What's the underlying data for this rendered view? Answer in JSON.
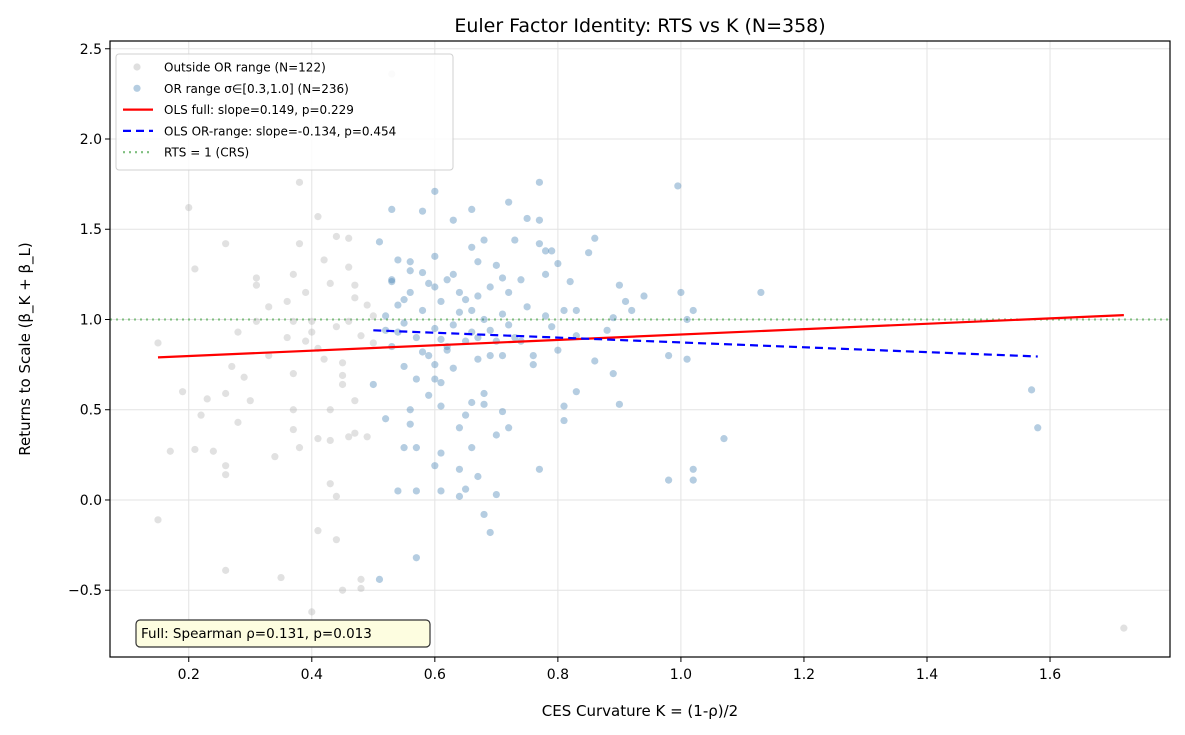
{
  "chart_data": {
    "type": "scatter",
    "title": "Euler Factor Identity: RTS vs K (N=358)",
    "xlabel": "CES Curvature K = (1-ρ)/2",
    "ylabel": "Returns to Scale (β_K + β_L)",
    "xlim": [
      0.072,
      1.795
    ],
    "ylim": [
      -0.87,
      2.543
    ],
    "xticks": [
      0.2,
      0.4,
      0.6,
      0.8,
      1.0,
      1.2,
      1.4,
      1.6
    ],
    "xtick_labels": [
      "0.2",
      "0.4",
      "0.6",
      "0.8",
      "1.0",
      "1.2",
      "1.4",
      "1.6"
    ],
    "yticks": [
      -0.5,
      0.0,
      0.5,
      1.0,
      1.5,
      2.0,
      2.5
    ],
    "ytick_labels": [
      "−0.5",
      "0.0",
      "0.5",
      "1.0",
      "1.5",
      "2.0",
      "2.5"
    ],
    "grid": true,
    "legend_position": "top-left",
    "series": [
      {
        "name": "Outside OR range (N=122)",
        "kind": "scatter",
        "color": "#b0b0b0",
        "points": [
          [
            0.15,
            -0.11
          ],
          [
            0.17,
            0.27
          ],
          [
            0.15,
            0.87
          ],
          [
            0.19,
            0.6
          ],
          [
            0.2,
            1.62
          ],
          [
            0.21,
            1.28
          ],
          [
            0.21,
            0.28
          ],
          [
            0.22,
            0.47
          ],
          [
            0.23,
            0.56
          ],
          [
            0.24,
            0.27
          ],
          [
            0.26,
            0.19
          ],
          [
            0.26,
            1.42
          ],
          [
            0.26,
            0.14
          ],
          [
            0.26,
            -0.39
          ],
          [
            0.26,
            0.59
          ],
          [
            0.27,
            0.74
          ],
          [
            0.28,
            0.43
          ],
          [
            0.28,
            0.93
          ],
          [
            0.3,
            0.55
          ],
          [
            0.31,
            1.19
          ],
          [
            0.31,
            1.23
          ],
          [
            0.31,
            0.99
          ],
          [
            0.33,
            1.07
          ],
          [
            0.34,
            0.24
          ],
          [
            0.35,
            -0.43
          ],
          [
            0.36,
            0.9
          ],
          [
            0.37,
            0.99
          ],
          [
            0.37,
            0.7
          ],
          [
            0.37,
            0.39
          ],
          [
            0.37,
            0.5
          ],
          [
            0.38,
            0.29
          ],
          [
            0.38,
            1.76
          ],
          [
            0.38,
            1.42
          ],
          [
            0.37,
            1.25
          ],
          [
            0.39,
            1.15
          ],
          [
            0.4,
            0.99
          ],
          [
            0.4,
            0.93
          ],
          [
            0.41,
            0.84
          ],
          [
            0.41,
            0.34
          ],
          [
            0.41,
            1.57
          ],
          [
            0.41,
            -0.17
          ],
          [
            0.4,
            -0.62
          ],
          [
            0.42,
            1.33
          ],
          [
            0.43,
            1.2
          ],
          [
            0.43,
            0.5
          ],
          [
            0.43,
            0.33
          ],
          [
            0.43,
            0.09
          ],
          [
            0.44,
            -0.22
          ],
          [
            0.44,
            0.02
          ],
          [
            0.44,
            1.46
          ],
          [
            0.45,
            0.64
          ],
          [
            0.45,
            0.69
          ],
          [
            0.45,
            -0.5
          ],
          [
            0.46,
            0.99
          ],
          [
            0.46,
            0.35
          ],
          [
            0.46,
            1.29
          ],
          [
            0.46,
            1.45
          ],
          [
            0.47,
            1.19
          ],
          [
            0.47,
            0.37
          ],
          [
            0.47,
            1.12
          ],
          [
            0.47,
            0.55
          ],
          [
            0.48,
            -0.44
          ],
          [
            0.48,
            -0.49
          ],
          [
            0.49,
            1.08
          ],
          [
            0.49,
            0.35
          ],
          [
            0.5,
            1.02
          ],
          [
            0.5,
            0.87
          ],
          [
            0.53,
            2.36
          ],
          [
            0.42,
            0.78
          ],
          [
            0.44,
            0.96
          ],
          [
            0.36,
            1.1
          ],
          [
            0.39,
            0.88
          ],
          [
            0.45,
            0.76
          ],
          [
            0.48,
            0.91
          ],
          [
            0.33,
            0.8
          ],
          [
            0.29,
            0.68
          ],
          [
            1.72,
            -0.71
          ]
        ]
      },
      {
        "name": "OR range σ∈[0.3,1.0] (N=236)",
        "kind": "scatter",
        "color": "#4682b4",
        "points": [
          [
            0.51,
            1.43
          ],
          [
            0.53,
            1.61
          ],
          [
            0.52,
            0.94
          ],
          [
            0.5,
            0.64
          ],
          [
            0.52,
            0.45
          ],
          [
            0.51,
            -0.44
          ],
          [
            0.53,
            1.22
          ],
          [
            0.54,
            1.33
          ],
          [
            0.54,
            0.05
          ],
          [
            0.55,
            0.29
          ],
          [
            0.55,
            1.11
          ],
          [
            0.56,
            1.32
          ],
          [
            0.56,
            0.5
          ],
          [
            0.56,
            0.42
          ],
          [
            0.57,
            -0.32
          ],
          [
            0.57,
            0.05
          ],
          [
            0.57,
            0.29
          ],
          [
            0.58,
            1.6
          ],
          [
            0.58,
            1.26
          ],
          [
            0.59,
            0.58
          ],
          [
            0.59,
            0.8
          ],
          [
            0.6,
            1.71
          ],
          [
            0.6,
            1.35
          ],
          [
            0.6,
            1.18
          ],
          [
            0.6,
            0.67
          ],
          [
            0.6,
            0.19
          ],
          [
            0.61,
            0.26
          ],
          [
            0.61,
            0.05
          ],
          [
            0.61,
            0.52
          ],
          [
            0.61,
            0.65
          ],
          [
            0.63,
            1.25
          ],
          [
            0.62,
            0.83
          ],
          [
            0.63,
            1.55
          ],
          [
            0.64,
            0.02
          ],
          [
            0.64,
            0.17
          ],
          [
            0.64,
            0.4
          ],
          [
            0.65,
            0.06
          ],
          [
            0.65,
            1.11
          ],
          [
            0.65,
            0.47
          ],
          [
            0.66,
            1.61
          ],
          [
            0.66,
            0.29
          ],
          [
            0.66,
            1.4
          ],
          [
            0.66,
            0.54
          ],
          [
            0.67,
            1.32
          ],
          [
            0.67,
            0.9
          ],
          [
            0.67,
            0.13
          ],
          [
            0.68,
            0.59
          ],
          [
            0.68,
            -0.08
          ],
          [
            0.68,
            0.53
          ],
          [
            0.68,
            1.44
          ],
          [
            0.69,
            -0.18
          ],
          [
            0.69,
            0.94
          ],
          [
            0.69,
            0.8
          ],
          [
            0.7,
            0.03
          ],
          [
            0.7,
            0.36
          ],
          [
            0.7,
            1.3
          ],
          [
            0.71,
            1.23
          ],
          [
            0.71,
            0.49
          ],
          [
            0.71,
            0.8
          ],
          [
            0.72,
            1.65
          ],
          [
            0.72,
            0.4
          ],
          [
            0.72,
            1.15
          ],
          [
            0.73,
            0.9
          ],
          [
            0.73,
            1.44
          ],
          [
            0.74,
            1.22
          ],
          [
            0.75,
            1.07
          ],
          [
            0.75,
            1.56
          ],
          [
            0.76,
            0.8
          ],
          [
            0.76,
            0.75
          ],
          [
            0.77,
            1.42
          ],
          [
            0.77,
            1.76
          ],
          [
            0.77,
            1.55
          ],
          [
            0.77,
            0.17
          ],
          [
            0.78,
            1.38
          ],
          [
            0.78,
            1.25
          ],
          [
            0.78,
            1.02
          ],
          [
            0.79,
            0.96
          ],
          [
            0.79,
            1.38
          ],
          [
            0.8,
            1.31
          ],
          [
            0.8,
            0.83
          ],
          [
            0.81,
            0.52
          ],
          [
            0.81,
            0.44
          ],
          [
            0.81,
            1.05
          ],
          [
            0.82,
            1.21
          ],
          [
            0.83,
            1.05
          ],
          [
            0.83,
            0.91
          ],
          [
            0.83,
            0.6
          ],
          [
            0.85,
            1.37
          ],
          [
            0.86,
            0.77
          ],
          [
            0.86,
            1.45
          ],
          [
            0.88,
            0.94
          ],
          [
            0.89,
            0.7
          ],
          [
            0.89,
            1.01
          ],
          [
            0.9,
            0.53
          ],
          [
            0.9,
            1.19
          ],
          [
            0.91,
            1.1
          ],
          [
            0.92,
            1.05
          ],
          [
            0.94,
            1.13
          ],
          [
            0.98,
            0.8
          ],
          [
            0.98,
            0.11
          ],
          [
            0.995,
            1.74
          ],
          [
            1.0,
            1.15
          ],
          [
            1.01,
            0.78
          ],
          [
            1.01,
            1.0
          ],
          [
            1.02,
            0.17
          ],
          [
            1.02,
            0.11
          ],
          [
            1.02,
            1.05
          ],
          [
            1.07,
            0.34
          ],
          [
            1.13,
            1.15
          ],
          [
            1.57,
            0.61
          ],
          [
            1.58,
            0.4
          ],
          [
            0.53,
            1.21
          ],
          [
            0.54,
            1.08
          ],
          [
            0.55,
            0.98
          ],
          [
            0.56,
            1.15
          ],
          [
            0.57,
            0.9
          ],
          [
            0.58,
            1.05
          ],
          [
            0.59,
            1.2
          ],
          [
            0.6,
            0.95
          ],
          [
            0.61,
            1.1
          ],
          [
            0.62,
            0.85
          ],
          [
            0.62,
            1.22
          ],
          [
            0.63,
            0.97
          ],
          [
            0.64,
            1.15
          ],
          [
            0.65,
            0.88
          ],
          [
            0.66,
            1.05
          ],
          [
            0.67,
            0.78
          ],
          [
            0.68,
            1.0
          ],
          [
            0.69,
            1.18
          ],
          [
            0.7,
            0.88
          ],
          [
            0.72,
            0.97
          ],
          [
            0.74,
            0.88
          ],
          [
            0.53,
            0.85
          ],
          [
            0.55,
            0.74
          ],
          [
            0.57,
            0.67
          ],
          [
            0.6,
            0.75
          ],
          [
            0.63,
            0.73
          ],
          [
            0.66,
            0.93
          ],
          [
            0.71,
            1.03
          ],
          [
            0.52,
            1.02
          ],
          [
            0.56,
            1.27
          ],
          [
            0.58,
            0.82
          ],
          [
            0.54,
            0.93
          ],
          [
            0.61,
            0.89
          ],
          [
            0.64,
            1.04
          ],
          [
            0.67,
            1.13
          ]
        ]
      },
      {
        "name": "OLS full: slope=0.149, p=0.229",
        "kind": "line",
        "color": "#ff0000",
        "style": "solid",
        "x": [
          0.15,
          1.72
        ],
        "y": [
          0.79,
          1.024
        ]
      },
      {
        "name": "OLS OR-range: slope=-0.134, p=0.454",
        "kind": "line",
        "color": "#0000ff",
        "style": "dashed",
        "x": [
          0.5,
          1.58
        ],
        "y": [
          0.94,
          0.795
        ]
      },
      {
        "name": "RTS = 1 (CRS)",
        "kind": "hline",
        "color": "#7fbf7f",
        "style": "dotted",
        "y": 1.0
      }
    ],
    "annotation": "Full: Spearman ρ=0.131, p=0.013"
  }
}
